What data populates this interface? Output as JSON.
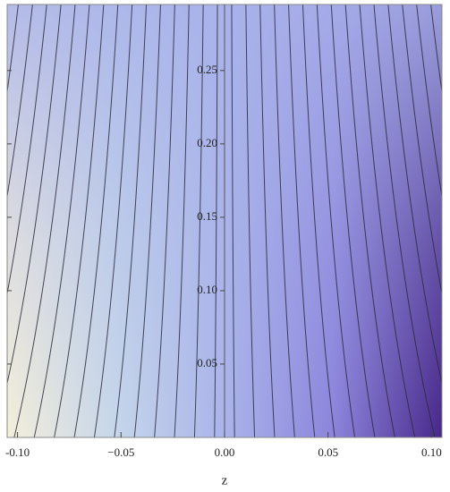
{
  "chart_data": {
    "type": "contour",
    "x_label": "z",
    "xlim": [
      -0.105,
      0.105
    ],
    "ylim": [
      0,
      0.295
    ],
    "xticks": [
      {
        "value": -0.1,
        "label": "-0.10"
      },
      {
        "value": -0.05,
        "label": "−0.05"
      },
      {
        "value": 0,
        "label": "0.00"
      },
      {
        "value": 0.05,
        "label": "0.05"
      },
      {
        "value": 0.1,
        "label": "0.10"
      }
    ],
    "yticks": [
      0.05,
      {
        "value": 0.1,
        "label": "0.10"
      },
      0.15,
      {
        "value": 0.2,
        "label": "0.20"
      },
      0.25
    ]
  }
}
